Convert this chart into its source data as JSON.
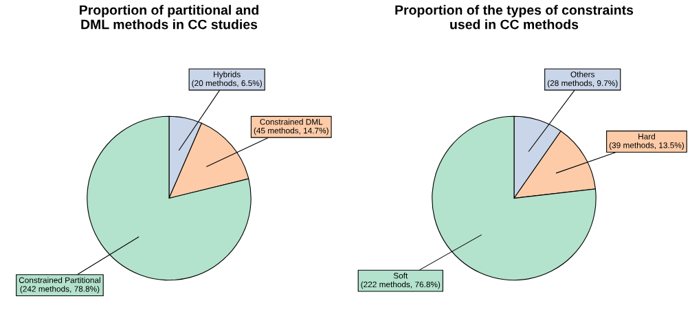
{
  "chart_data": [
    {
      "type": "pie",
      "title": "Proportion of partitional and\nDML methods in CC studies",
      "categories": [
        "Hybrids",
        "Constrained DML",
        "Constrained Partitional"
      ],
      "values": [
        20,
        45,
        242
      ],
      "value_labels": [
        "(20 methods, 6.5%)",
        "(45 methods, 14.7%)",
        "(242 methods, 78.8%)"
      ],
      "colors": [
        "#c9d5e8",
        "#fdcba8",
        "#b3e2cd"
      ]
    },
    {
      "type": "pie",
      "title": "Proportion of the types of constraints\nused in CC methods",
      "categories": [
        "Others",
        "Hard",
        "Soft"
      ],
      "values": [
        28,
        39,
        222
      ],
      "value_labels": [
        "(28 methods, 9.7%)",
        "(39 methods, 13.5%)",
        "(222 methods, 76.8%)"
      ],
      "colors": [
        "#c9d5e8",
        "#fdcba8",
        "#b3e2cd"
      ]
    }
  ]
}
